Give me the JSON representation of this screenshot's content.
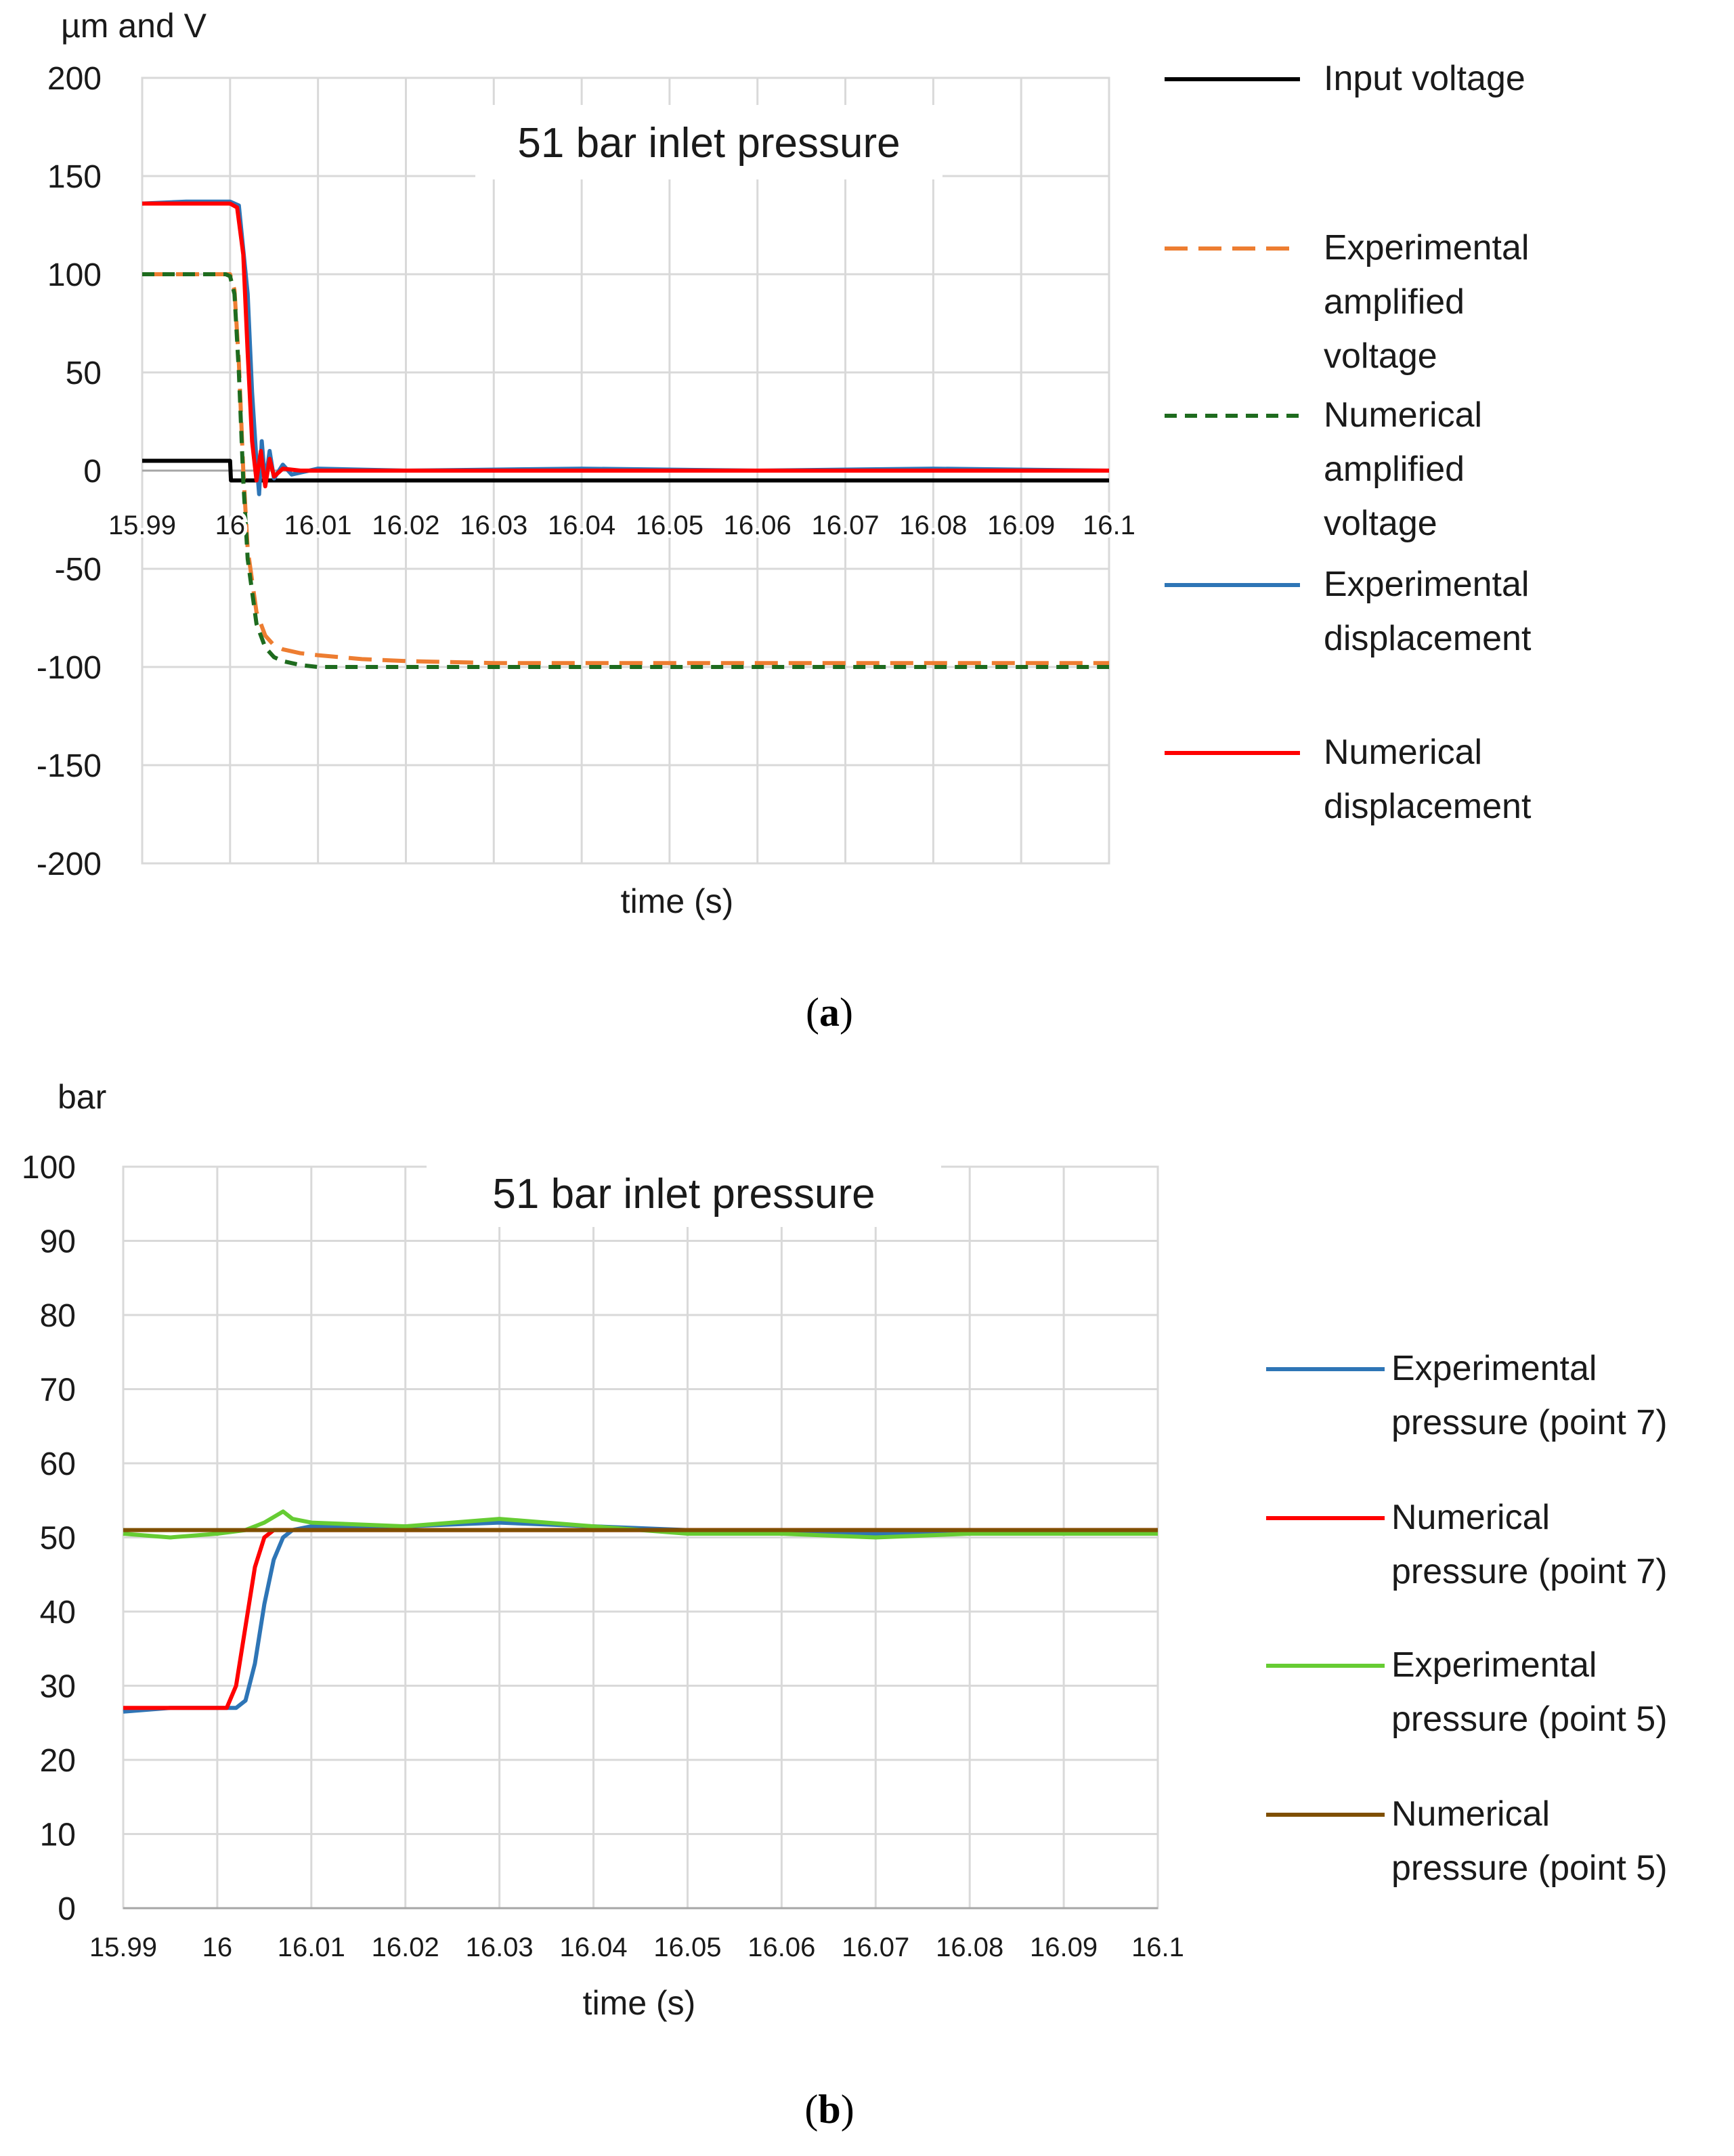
{
  "chart_data": [
    {
      "panel": "a",
      "type": "line",
      "title": "51 bar inlet pressure",
      "xlabel": "time (s)",
      "ylabel": "µm and V",
      "xlim": [
        15.99,
        16.1
      ],
      "ylim": [
        -200,
        200
      ],
      "x_ticks": [
        "15.99",
        "16",
        "16.01",
        "16.02",
        "16.03",
        "16.04",
        "16.05",
        "16.06",
        "16.07",
        "16.08",
        "16.09",
        "16.1"
      ],
      "y_ticks": [
        "200",
        "150",
        "100",
        "50",
        "0",
        "-50",
        "-100",
        "-150",
        "-200"
      ],
      "grid": true,
      "legend_position": "right",
      "caption": "(a)",
      "caption_letter": "a",
      "series": [
        {
          "name": "Input voltage",
          "legend": [
            "Input voltage"
          ],
          "color": "#000000",
          "style": "solid",
          "x": [
            15.99,
            16.0,
            16.0001,
            16.1
          ],
          "y": [
            5,
            5,
            -5,
            -5
          ]
        },
        {
          "name": "Experimental amplified voltage",
          "legend": [
            "Experimental",
            "amplified",
            "voltage"
          ],
          "color": "#ed7d31",
          "style": "dashed",
          "x": [
            15.99,
            15.9995,
            16.0,
            16.0005,
            16.001,
            16.0015,
            16.002,
            16.003,
            16.004,
            16.005,
            16.006,
            16.008,
            16.01,
            16.015,
            16.02,
            16.03,
            16.05,
            16.1
          ],
          "y": [
            100,
            100,
            100,
            92,
            55,
            0,
            -40,
            -72,
            -84,
            -89,
            -91,
            -93,
            -94,
            -96,
            -97,
            -98,
            -98,
            -98
          ]
        },
        {
          "name": "Numerical amplified voltage",
          "legend": [
            "Numerical",
            "amplified",
            "voltage"
          ],
          "color": "#1e6b1e",
          "style": "dashed",
          "x": [
            15.99,
            15.9995,
            16.0,
            16.0005,
            16.001,
            16.0015,
            16.002,
            16.003,
            16.004,
            16.005,
            16.006,
            16.008,
            16.01,
            16.015,
            16.02,
            16.05,
            16.1
          ],
          "y": [
            100,
            100,
            99,
            90,
            50,
            -5,
            -45,
            -78,
            -90,
            -95,
            -97,
            -99,
            -100,
            -100,
            -100,
            -100,
            -100
          ]
        },
        {
          "name": "Experimental displacement",
          "legend": [
            "Experimental",
            "displacement"
          ],
          "color": "#2e75b6",
          "style": "solid",
          "x": [
            15.99,
            15.995,
            16.0,
            16.001,
            16.002,
            16.0025,
            16.003,
            16.0033,
            16.0036,
            16.004,
            16.0045,
            16.005,
            16.006,
            16.007,
            16.01,
            16.02,
            16.04,
            16.06,
            16.08,
            16.1
          ],
          "y": [
            136,
            137,
            137,
            135,
            90,
            40,
            5,
            -12,
            15,
            -6,
            10,
            -4,
            3,
            -2,
            1,
            0,
            1,
            0,
            1,
            0
          ]
        },
        {
          "name": "Numerical displacement",
          "legend": [
            "Numerical",
            "displacement"
          ],
          "color": "#ff0000",
          "style": "solid",
          "x": [
            15.99,
            15.995,
            16.0,
            16.0008,
            16.0015,
            16.002,
            16.0025,
            16.003,
            16.0035,
            16.004,
            16.0045,
            16.005,
            16.006,
            16.008,
            16.01,
            16.05,
            16.1
          ],
          "y": [
            136,
            136,
            136,
            134,
            110,
            60,
            15,
            -5,
            10,
            -8,
            6,
            -3,
            1,
            0,
            0,
            0,
            0
          ]
        }
      ]
    },
    {
      "panel": "b",
      "type": "line",
      "title": "51 bar inlet pressure",
      "xlabel": "time (s)",
      "ylabel": "bar",
      "xlim": [
        15.99,
        16.1
      ],
      "ylim": [
        0,
        100
      ],
      "x_ticks": [
        "15.99",
        "16",
        "16.01",
        "16.02",
        "16.03",
        "16.04",
        "16.05",
        "16.06",
        "16.07",
        "16.08",
        "16.09",
        "16.1"
      ],
      "y_ticks": [
        "100",
        "90",
        "80",
        "70",
        "60",
        "50",
        "40",
        "30",
        "20",
        "10",
        "0"
      ],
      "grid": true,
      "legend_position": "right",
      "caption": "(b)",
      "caption_letter": "b",
      "series": [
        {
          "name": "Experimental pressure (point 7)",
          "legend": [
            "Experimental",
            "pressure (point 7)"
          ],
          "color": "#2e75b6",
          "style": "solid",
          "x": [
            15.99,
            15.995,
            16.0,
            16.002,
            16.003,
            16.004,
            16.005,
            16.006,
            16.007,
            16.008,
            16.01,
            16.02,
            16.03,
            16.04,
            16.05,
            16.06,
            16.07,
            16.08,
            16.09,
            16.1
          ],
          "y": [
            26.5,
            27,
            27,
            27,
            28,
            33,
            41,
            47,
            50,
            51,
            51.5,
            51.5,
            52,
            51.5,
            51,
            50.5,
            50.5,
            50.5,
            51,
            51
          ]
        },
        {
          "name": "Numerical pressure (point 7)",
          "legend": [
            "Numerical",
            "pressure (point 7)"
          ],
          "color": "#ff0000",
          "style": "solid",
          "x": [
            15.99,
            16.0,
            16.001,
            16.002,
            16.003,
            16.004,
            16.005,
            16.006,
            16.007,
            16.1
          ],
          "y": [
            27,
            27,
            27,
            30,
            38,
            46,
            50,
            51,
            51,
            51
          ]
        },
        {
          "name": "Experimental pressure (point 5)",
          "legend": [
            "Experimental",
            "pressure (point 5)"
          ],
          "color": "#66cc33",
          "style": "solid",
          "x": [
            15.99,
            15.995,
            16.0,
            16.003,
            16.005,
            16.007,
            16.008,
            16.01,
            16.02,
            16.03,
            16.04,
            16.05,
            16.06,
            16.07,
            16.08,
            16.09,
            16.1
          ],
          "y": [
            50.5,
            50,
            50.5,
            51,
            52,
            53.5,
            52.5,
            52,
            51.5,
            52.5,
            51.5,
            50.5,
            50.5,
            50,
            50.5,
            50.5,
            50.5
          ]
        },
        {
          "name": "Numerical pressure (point 5)",
          "legend": [
            "Numerical",
            "pressure (point 5)"
          ],
          "color": "#7f4f00",
          "style": "solid",
          "x": [
            15.99,
            16.1
          ],
          "y": [
            51,
            51
          ]
        }
      ]
    }
  ]
}
